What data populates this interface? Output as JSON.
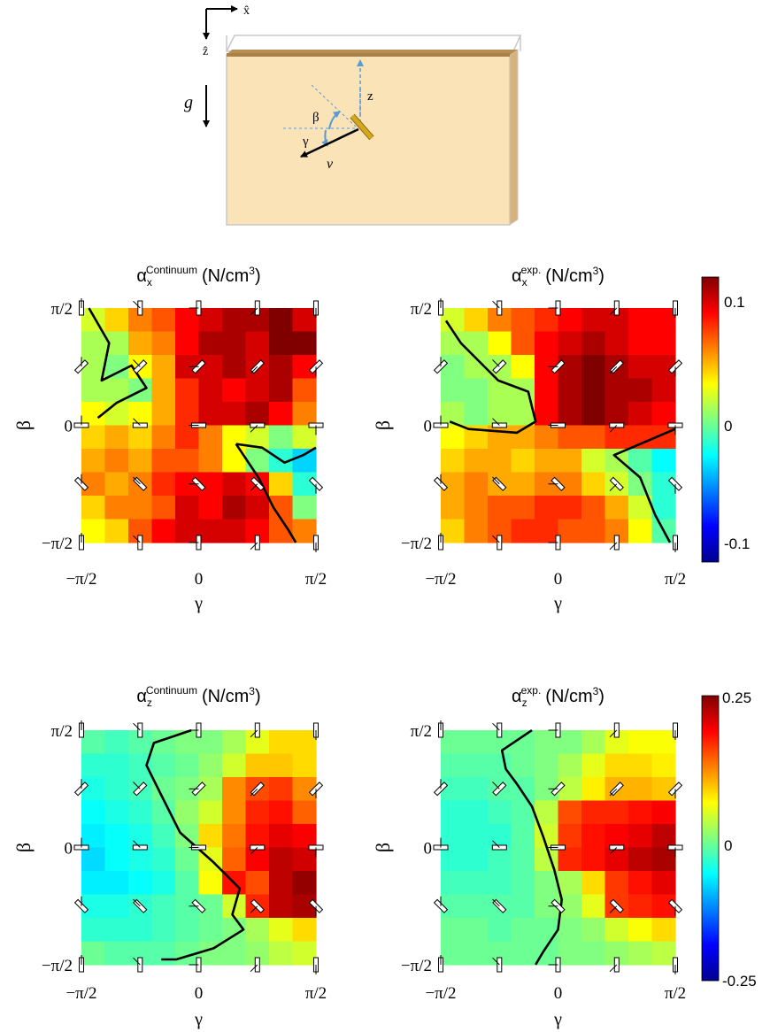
{
  "schematic": {
    "axis_x_label": "x̂",
    "axis_z_label": "ẑ",
    "gravity_label": "g",
    "angle_beta_label": "β",
    "angle_gamma_label": "γ",
    "depth_label": "z",
    "velocity_label": "v",
    "colors": {
      "box_fill": "#fbe3b8",
      "top_plate": "#a9824a",
      "side_plate": "#b88f52",
      "rod": "#d4a81c",
      "angle_arrows": "#5a9bd3"
    }
  },
  "chart_data": [
    {
      "type": "heatmap",
      "title": "αxContinuum (N/cm3)",
      "title_parts": {
        "symbol": "α",
        "sub": "x",
        "sup": "Continuum",
        "units": "(N/cm",
        "units_sup": "3",
        "units_end": ")"
      },
      "xlabel": "γ",
      "ylabel": "β",
      "xlim": [
        "−π/2",
        "π/2"
      ],
      "ylim": [
        "−π/2",
        "π/2"
      ],
      "x_ticks": [
        "−π/2",
        "0",
        "π/2"
      ],
      "y_ticks": [
        "π/2",
        "0",
        "−π/2"
      ],
      "grid_shape": [
        10,
        10
      ],
      "colorbar_range": [
        -0.12,
        0.12
      ],
      "values": [
        [
          0.02,
          0.04,
          0.06,
          0.07,
          0.09,
          0.1,
          0.11,
          0.11,
          0.12,
          0.1
        ],
        [
          0.01,
          0.01,
          0.05,
          0.06,
          0.09,
          0.11,
          0.11,
          0.1,
          0.12,
          0.12
        ],
        [
          0.01,
          0.0,
          0.03,
          0.05,
          0.1,
          0.1,
          0.11,
          0.1,
          0.11,
          0.09
        ],
        [
          0.01,
          0.01,
          0.0,
          0.05,
          0.08,
          0.1,
          0.09,
          0.1,
          0.11,
          0.07
        ],
        [
          0.03,
          0.02,
          0.03,
          0.05,
          0.08,
          0.1,
          0.1,
          0.11,
          0.09,
          0.06
        ],
        [
          0.04,
          0.05,
          0.04,
          0.06,
          0.08,
          0.06,
          0.03,
          0.02,
          0.0,
          0.02
        ],
        [
          0.05,
          0.06,
          0.05,
          0.07,
          0.07,
          0.06,
          0.03,
          0.0,
          -0.02,
          -0.04
        ],
        [
          0.06,
          0.05,
          0.06,
          0.08,
          0.09,
          0.09,
          0.1,
          0.09,
          0.04,
          -0.02
        ],
        [
          0.04,
          0.06,
          0.06,
          0.07,
          0.1,
          0.09,
          0.11,
          0.1,
          0.07,
          0.0
        ],
        [
          0.03,
          0.04,
          0.07,
          0.09,
          0.1,
          0.1,
          0.1,
          0.09,
          0.07,
          0.06
        ]
      ],
      "zero_contours": [
        [
          [
            -1.47,
            1.57
          ],
          [
            -1.2,
            1.1
          ],
          [
            -1.3,
            0.6
          ],
          [
            -0.9,
            0.8
          ],
          [
            -0.7,
            0.5
          ],
          [
            -1.1,
            0.3
          ],
          [
            -1.35,
            0.1
          ]
        ],
        [
          [
            0.5,
            -0.25
          ],
          [
            0.85,
            -0.3
          ],
          [
            1.15,
            -0.5
          ],
          [
            1.4,
            -0.4
          ],
          [
            1.57,
            -0.3
          ]
        ],
        [
          [
            0.5,
            -0.25
          ],
          [
            0.8,
            -0.7
          ],
          [
            1.0,
            -1.1
          ],
          [
            1.2,
            -1.4
          ],
          [
            1.3,
            -1.57
          ]
        ]
      ]
    },
    {
      "type": "heatmap",
      "title": "αxexp. (N/cm3)",
      "title_parts": {
        "symbol": "α",
        "sub": "x",
        "sup": "exp.",
        "units": "(N/cm",
        "units_sup": "3",
        "units_end": ")"
      },
      "xlabel": "γ",
      "ylabel": "β",
      "xlim": [
        "−π/2",
        "π/2"
      ],
      "ylim": [
        "−π/2",
        "π/2"
      ],
      "x_ticks": [
        "−π/2",
        "0",
        "π/2"
      ],
      "y_ticks": [
        "π/2",
        "0",
        "−π/2"
      ],
      "grid_shape": [
        10,
        10
      ],
      "colorbar_range": [
        -0.12,
        0.12
      ],
      "values": [
        [
          0.02,
          0.04,
          0.06,
          0.07,
          0.08,
          0.09,
          0.1,
          0.1,
          0.09,
          0.09
        ],
        [
          0.01,
          0.01,
          0.03,
          0.07,
          0.09,
          0.1,
          0.11,
          0.1,
          0.09,
          0.09
        ],
        [
          0.0,
          0.01,
          0.01,
          0.03,
          0.09,
          0.11,
          0.12,
          0.11,
          0.1,
          0.1
        ],
        [
          0.0,
          0.0,
          0.01,
          0.01,
          0.09,
          0.11,
          0.12,
          0.11,
          0.11,
          0.1
        ],
        [
          0.01,
          0.0,
          0.01,
          0.01,
          0.09,
          0.11,
          0.12,
          0.11,
          0.1,
          0.09
        ],
        [
          0.03,
          0.04,
          0.05,
          0.05,
          0.06,
          0.07,
          0.07,
          0.08,
          0.08,
          0.08
        ],
        [
          0.04,
          0.05,
          0.05,
          0.04,
          0.05,
          0.05,
          0.02,
          0.01,
          -0.01,
          -0.03
        ],
        [
          0.05,
          0.06,
          0.05,
          0.05,
          0.06,
          0.06,
          0.04,
          0.02,
          0.0,
          -0.02
        ],
        [
          0.05,
          0.06,
          0.07,
          0.07,
          0.08,
          0.08,
          0.07,
          0.05,
          0.02,
          -0.02
        ],
        [
          0.04,
          0.06,
          0.07,
          0.08,
          0.08,
          0.07,
          0.07,
          0.06,
          0.03,
          -0.01
        ]
      ],
      "zero_contours": [
        [
          [
            -1.5,
            1.4
          ],
          [
            -1.3,
            1.1
          ],
          [
            -1.0,
            0.8
          ],
          [
            -0.8,
            0.6
          ],
          [
            -0.4,
            0.45
          ],
          [
            -0.3,
            0.05
          ],
          [
            -0.55,
            -0.1
          ],
          [
            -1.2,
            -0.05
          ],
          [
            -1.45,
            0.05
          ]
        ],
        [
          [
            1.57,
            -0.05
          ],
          [
            0.75,
            -0.4
          ],
          [
            1.1,
            -0.7
          ],
          [
            1.3,
            -1.2
          ],
          [
            1.5,
            -1.57
          ]
        ]
      ]
    },
    {
      "type": "heatmap",
      "title": "αzContinuum (N/cm3)",
      "title_parts": {
        "symbol": "α",
        "sub": "z",
        "sup": "Continuum",
        "units": "(N/cm",
        "units_sup": "3",
        "units_end": ")"
      },
      "xlabel": "γ",
      "ylabel": "β",
      "xlim": [
        "−π/2",
        "π/2"
      ],
      "ylim": [
        "−π/2",
        "π/2"
      ],
      "x_ticks": [
        "−π/2",
        "0",
        "π/2"
      ],
      "y_ticks": [
        "π/2",
        "0",
        "−π/2"
      ],
      "grid_shape": [
        10,
        10
      ],
      "colorbar_range": [
        -0.25,
        0.25
      ],
      "values": [
        [
          -0.02,
          -0.03,
          -0.02,
          -0.01,
          0.0,
          0.0,
          0.02,
          0.05,
          0.08,
          0.08
        ],
        [
          -0.04,
          -0.04,
          -0.03,
          -0.02,
          -0.01,
          0.01,
          0.04,
          0.09,
          0.09,
          0.08
        ],
        [
          -0.05,
          -0.04,
          -0.03,
          -0.01,
          0.0,
          0.02,
          0.12,
          0.15,
          0.16,
          0.12
        ],
        [
          -0.06,
          -0.05,
          -0.04,
          -0.02,
          0.01,
          0.04,
          0.12,
          0.17,
          0.18,
          0.14
        ],
        [
          -0.07,
          -0.06,
          -0.05,
          -0.03,
          0.0,
          0.08,
          0.13,
          0.18,
          0.2,
          0.19
        ],
        [
          -0.08,
          -0.06,
          -0.05,
          -0.04,
          -0.01,
          0.05,
          0.14,
          0.19,
          0.22,
          0.21
        ],
        [
          -0.07,
          -0.07,
          -0.06,
          -0.05,
          -0.02,
          0.06,
          0.18,
          0.15,
          0.22,
          0.24
        ],
        [
          -0.05,
          -0.05,
          -0.04,
          -0.03,
          -0.02,
          -0.01,
          0.04,
          0.17,
          0.22,
          0.23
        ],
        [
          -0.04,
          -0.04,
          -0.04,
          -0.03,
          -0.02,
          -0.01,
          0.0,
          0.02,
          0.05,
          0.08
        ],
        [
          -0.01,
          -0.02,
          -0.02,
          -0.02,
          -0.01,
          0.0,
          0.0,
          0.01,
          0.03,
          0.04
        ]
      ],
      "zero_contours": [
        [
          [
            -0.1,
            1.57
          ],
          [
            -0.6,
            1.4
          ],
          [
            -0.7,
            1.1
          ],
          [
            -0.5,
            0.7
          ],
          [
            -0.25,
            0.2
          ],
          [
            0.2,
            -0.2
          ],
          [
            0.4,
            -0.4
          ],
          [
            0.55,
            -0.55
          ],
          [
            0.45,
            -0.9
          ],
          [
            0.6,
            -1.1
          ],
          [
            0.2,
            -1.35
          ],
          [
            -0.3,
            -1.5
          ],
          [
            -0.5,
            -1.5
          ]
        ]
      ]
    },
    {
      "type": "heatmap",
      "title": "αzexp. (N/cm3)",
      "title_parts": {
        "symbol": "α",
        "sub": "z",
        "sup": "exp.",
        "units": "(N/cm",
        "units_sup": "3",
        "units_end": ")"
      },
      "xlabel": "γ",
      "ylabel": "β",
      "xlim": [
        "−π/2",
        "π/2"
      ],
      "ylim": [
        "−π/2",
        "π/2"
      ],
      "x_ticks": [
        "−π/2",
        "0",
        "π/2"
      ],
      "y_ticks": [
        "π/2",
        "0",
        "−π/2"
      ],
      "grid_shape": [
        10,
        10
      ],
      "colorbar_range": [
        -0.25,
        0.25
      ],
      "values": [
        [
          -0.01,
          -0.01,
          -0.01,
          -0.01,
          0.0,
          0.0,
          0.02,
          0.05,
          0.06,
          0.06
        ],
        [
          -0.02,
          -0.02,
          -0.02,
          -0.01,
          0.0,
          0.02,
          0.05,
          0.08,
          0.08,
          0.07
        ],
        [
          -0.03,
          -0.03,
          -0.02,
          -0.02,
          0.0,
          0.03,
          0.07,
          0.1,
          0.1,
          0.09
        ],
        [
          -0.04,
          -0.04,
          -0.03,
          -0.02,
          0.03,
          0.15,
          0.17,
          0.17,
          0.18,
          0.19
        ],
        [
          -0.04,
          -0.04,
          -0.04,
          -0.02,
          0.04,
          0.16,
          0.18,
          0.19,
          0.2,
          0.22
        ],
        [
          -0.04,
          -0.04,
          -0.03,
          -0.02,
          0.03,
          0.17,
          0.18,
          0.2,
          0.22,
          0.23
        ],
        [
          -0.03,
          -0.03,
          -0.03,
          -0.02,
          0.0,
          0.02,
          0.08,
          0.16,
          0.18,
          0.2
        ],
        [
          -0.02,
          -0.02,
          -0.02,
          -0.02,
          0.0,
          0.01,
          0.05,
          0.16,
          0.17,
          0.18
        ],
        [
          -0.01,
          -0.01,
          -0.02,
          -0.01,
          -0.01,
          0.0,
          0.01,
          0.04,
          0.06,
          0.08
        ],
        [
          -0.01,
          -0.01,
          -0.01,
          -0.01,
          -0.01,
          0.0,
          0.0,
          0.01,
          0.02,
          0.03
        ]
      ],
      "zero_contours": [
        [
          [
            -0.35,
            1.57
          ],
          [
            -0.75,
            1.3
          ],
          [
            -0.7,
            1.05
          ],
          [
            -0.55,
            0.85
          ],
          [
            -0.35,
            0.55
          ],
          [
            -0.2,
            0.15
          ],
          [
            -0.05,
            -0.3
          ],
          [
            0.05,
            -0.7
          ],
          [
            0.0,
            -1.1
          ],
          [
            -0.2,
            -1.4
          ],
          [
            -0.3,
            -1.57
          ]
        ]
      ]
    }
  ],
  "colorbars": [
    {
      "ticks": [
        "0.1",
        "0",
        "-0.1"
      ],
      "tick_values": [
        0.1,
        0,
        -0.1
      ],
      "range": [
        -0.12,
        0.12
      ]
    },
    {
      "ticks": [
        "0.25",
        "0",
        "-0.25"
      ],
      "tick_values": [
        0.25,
        0,
        -0.25
      ],
      "range": [
        -0.25,
        0.25
      ]
    }
  ]
}
